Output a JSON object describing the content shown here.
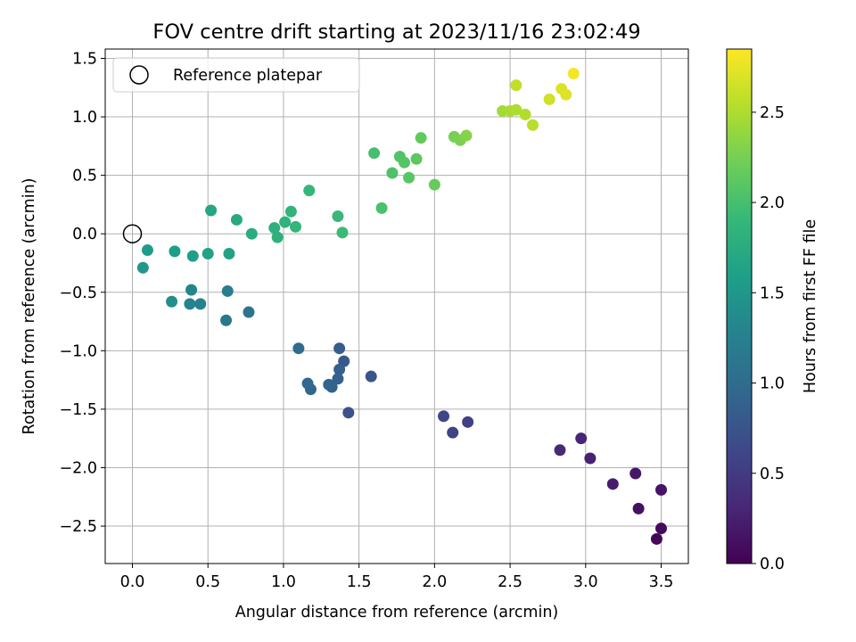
{
  "chart_data": {
    "type": "scatter",
    "title": "FOV centre drift starting at 2023/11/16 23:02:49",
    "xlabel": "Angular distance from reference (arcmin)",
    "ylabel": "Rotation from reference (arcmin)",
    "xlim": [
      -0.18,
      3.68
    ],
    "ylim": [
      -2.82,
      1.58
    ],
    "xticks": [
      0.0,
      0.5,
      1.0,
      1.5,
      2.0,
      2.5,
      3.0,
      3.5
    ],
    "xtick_labels": [
      "0.0",
      "0.5",
      "1.0",
      "1.5",
      "2.0",
      "2.5",
      "3.0",
      "3.5"
    ],
    "yticks": [
      -2.5,
      -2.0,
      -1.5,
      -1.0,
      -0.5,
      0.0,
      0.5,
      1.0,
      1.5
    ],
    "ytick_labels": [
      "−2.5",
      "−2.0",
      "−1.5",
      "−1.0",
      "−0.5",
      "0.0",
      "0.5",
      "1.0",
      "1.5"
    ],
    "grid": true,
    "legend": {
      "position": "top-left",
      "entries": [
        "Reference platepar"
      ]
    },
    "reference_point": {
      "x": 0.0,
      "y": 0.0,
      "label": "Reference platepar"
    },
    "colorbar": {
      "label": "Hours from first FF file",
      "range": [
        0.0,
        2.85
      ],
      "ticks": [
        0.0,
        0.5,
        1.0,
        1.5,
        2.0,
        2.5
      ],
      "tick_labels": [
        "0.0",
        "0.5",
        "1.0",
        "1.5",
        "2.0",
        "2.5"
      ],
      "colormap": "viridis"
    },
    "points": [
      {
        "x": 3.47,
        "y": -2.61,
        "c": 0.05
      },
      {
        "x": 3.5,
        "y": -2.52,
        "c": 0.08
      },
      {
        "x": 3.35,
        "y": -2.35,
        "c": 0.12
      },
      {
        "x": 3.5,
        "y": -2.19,
        "c": 0.15
      },
      {
        "x": 3.33,
        "y": -2.05,
        "c": 0.18
      },
      {
        "x": 3.18,
        "y": -2.14,
        "c": 0.22
      },
      {
        "x": 3.03,
        "y": -1.92,
        "c": 0.26
      },
      {
        "x": 2.97,
        "y": -1.75,
        "c": 0.29
      },
      {
        "x": 2.83,
        "y": -1.85,
        "c": 0.33
      },
      {
        "x": 2.22,
        "y": -1.61,
        "c": 0.55
      },
      {
        "x": 2.12,
        "y": -1.7,
        "c": 0.58
      },
      {
        "x": 2.06,
        "y": -1.56,
        "c": 0.6
      },
      {
        "x": 1.43,
        "y": -1.53,
        "c": 0.72
      },
      {
        "x": 1.58,
        "y": -1.22,
        "c": 0.76
      },
      {
        "x": 1.4,
        "y": -1.09,
        "c": 0.8
      },
      {
        "x": 1.37,
        "y": -0.98,
        "c": 0.84
      },
      {
        "x": 1.37,
        "y": -1.16,
        "c": 0.86
      },
      {
        "x": 1.36,
        "y": -1.24,
        "c": 0.88
      },
      {
        "x": 1.32,
        "y": -1.31,
        "c": 0.9
      },
      {
        "x": 1.3,
        "y": -1.29,
        "c": 0.92
      },
      {
        "x": 1.18,
        "y": -1.33,
        "c": 0.94
      },
      {
        "x": 1.16,
        "y": -1.28,
        "c": 0.96
      },
      {
        "x": 1.1,
        "y": -0.98,
        "c": 1.0
      },
      {
        "x": 0.77,
        "y": -0.67,
        "c": 1.1
      },
      {
        "x": 0.62,
        "y": -0.74,
        "c": 1.15
      },
      {
        "x": 0.63,
        "y": -0.49,
        "c": 1.2
      },
      {
        "x": 0.45,
        "y": -0.6,
        "c": 1.25
      },
      {
        "x": 0.38,
        "y": -0.6,
        "c": 1.28
      },
      {
        "x": 0.39,
        "y": -0.48,
        "c": 1.3
      },
      {
        "x": 0.26,
        "y": -0.58,
        "c": 1.4
      },
      {
        "x": 0.07,
        "y": -0.29,
        "c": 1.5
      },
      {
        "x": 0.1,
        "y": -0.14,
        "c": 1.55
      },
      {
        "x": 0.28,
        "y": -0.15,
        "c": 1.58
      },
      {
        "x": 0.4,
        "y": -0.19,
        "c": 1.6
      },
      {
        "x": 0.5,
        "y": -0.17,
        "c": 1.62
      },
      {
        "x": 0.64,
        "y": -0.17,
        "c": 1.64
      },
      {
        "x": 0.52,
        "y": 0.2,
        "c": 1.68
      },
      {
        "x": 0.69,
        "y": 0.12,
        "c": 1.72
      },
      {
        "x": 0.79,
        "y": 0.0,
        "c": 1.76
      },
      {
        "x": 0.94,
        "y": 0.05,
        "c": 1.8
      },
      {
        "x": 0.96,
        "y": -0.03,
        "c": 1.82
      },
      {
        "x": 1.01,
        "y": 0.1,
        "c": 1.84
      },
      {
        "x": 1.05,
        "y": 0.19,
        "c": 1.86
      },
      {
        "x": 1.08,
        "y": 0.06,
        "c": 1.88
      },
      {
        "x": 1.17,
        "y": 0.37,
        "c": 1.9
      },
      {
        "x": 1.36,
        "y": 0.15,
        "c": 1.92
      },
      {
        "x": 1.39,
        "y": 0.01,
        "c": 1.94
      },
      {
        "x": 1.6,
        "y": 0.69,
        "c": 2.0
      },
      {
        "x": 1.65,
        "y": 0.22,
        "c": 2.02
      },
      {
        "x": 1.72,
        "y": 0.52,
        "c": 2.04
      },
      {
        "x": 1.77,
        "y": 0.66,
        "c": 2.06
      },
      {
        "x": 1.8,
        "y": 0.61,
        "c": 2.08
      },
      {
        "x": 1.83,
        "y": 0.48,
        "c": 2.1
      },
      {
        "x": 1.88,
        "y": 0.64,
        "c": 2.12
      },
      {
        "x": 1.91,
        "y": 0.82,
        "c": 2.15
      },
      {
        "x": 2.0,
        "y": 0.42,
        "c": 2.18
      },
      {
        "x": 2.13,
        "y": 0.83,
        "c": 2.25
      },
      {
        "x": 2.17,
        "y": 0.8,
        "c": 2.28
      },
      {
        "x": 2.21,
        "y": 0.84,
        "c": 2.32
      },
      {
        "x": 2.45,
        "y": 1.05,
        "c": 2.45
      },
      {
        "x": 2.5,
        "y": 1.05,
        "c": 2.48
      },
      {
        "x": 2.54,
        "y": 1.06,
        "c": 2.5
      },
      {
        "x": 2.6,
        "y": 1.02,
        "c": 2.52
      },
      {
        "x": 2.65,
        "y": 0.93,
        "c": 2.55
      },
      {
        "x": 2.54,
        "y": 1.27,
        "c": 2.58
      },
      {
        "x": 2.76,
        "y": 1.15,
        "c": 2.65
      },
      {
        "x": 2.84,
        "y": 1.24,
        "c": 2.7
      },
      {
        "x": 2.87,
        "y": 1.19,
        "c": 2.72
      },
      {
        "x": 2.92,
        "y": 1.37,
        "c": 2.8
      }
    ]
  }
}
